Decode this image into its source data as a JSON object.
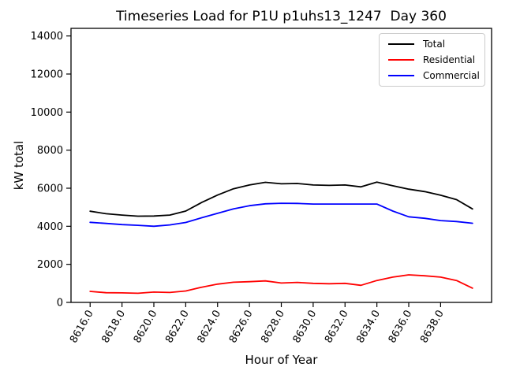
{
  "figure": {
    "title": "Timeseries Load for P1U p1uhs13_1247  Day 360"
  },
  "chart_data": {
    "type": "line",
    "title": "Timeseries Load for P1U p1uhs13_1247  Day 360",
    "xlabel": "Hour of Year",
    "ylabel": "kW total",
    "x": [
      8616,
      8617,
      8618,
      8619,
      8620,
      8621,
      8622,
      8623,
      8624,
      8625,
      8626,
      8627,
      8628,
      8629,
      8630,
      8631,
      8632,
      8633,
      8634,
      8635,
      8636,
      8637,
      8638,
      8639,
      8640
    ],
    "series": [
      {
        "name": "Total",
        "color": "#000000",
        "values": [
          4790,
          4660,
          4590,
          4530,
          4540,
          4590,
          4800,
          5250,
          5640,
          5970,
          6170,
          6310,
          6230,
          6250,
          6170,
          6150,
          6170,
          6070,
          6320,
          6130,
          5950,
          5820,
          5630,
          5400,
          4910
        ]
      },
      {
        "name": "Residential",
        "color": "#ff0000",
        "values": [
          580,
          510,
          500,
          480,
          540,
          520,
          600,
          800,
          960,
          1060,
          1090,
          1130,
          1020,
          1050,
          1000,
          980,
          1000,
          900,
          1150,
          1330,
          1450,
          1400,
          1330,
          1150,
          750
        ]
      },
      {
        "name": "Commercial",
        "color": "#0000ff",
        "values": [
          4210,
          4150,
          4090,
          4050,
          4000,
          4070,
          4200,
          4450,
          4680,
          4910,
          5080,
          5180,
          5210,
          5200,
          5170,
          5170,
          5170,
          5170,
          5170,
          4800,
          4500,
          4420,
          4300,
          4250,
          4160
        ]
      }
    ],
    "xlim": [
      8614.8,
      8641.2
    ],
    "ylim": [
      0,
      14400
    ],
    "xticks": {
      "values": [
        8616,
        8618,
        8620,
        8622,
        8624,
        8626,
        8628,
        8630,
        8632,
        8634,
        8636,
        8638
      ],
      "labels": [
        "8616.0",
        "8618.0",
        "8620.0",
        "8622.0",
        "8624.0",
        "8626.0",
        "8628.0",
        "8630.0",
        "8632.0",
        "8634.0",
        "8636.0",
        "8638.0"
      ],
      "rotation": 60
    },
    "yticks": {
      "values": [
        0,
        2000,
        4000,
        6000,
        8000,
        10000,
        12000,
        14000
      ],
      "labels": [
        "0",
        "2000",
        "4000",
        "6000",
        "8000",
        "10000",
        "12000",
        "14000"
      ]
    },
    "grid": false,
    "legend_position": "upper right",
    "colors": {
      "background": "#ffffff",
      "axes": "#000000",
      "legend_border": "#cccccc"
    }
  }
}
